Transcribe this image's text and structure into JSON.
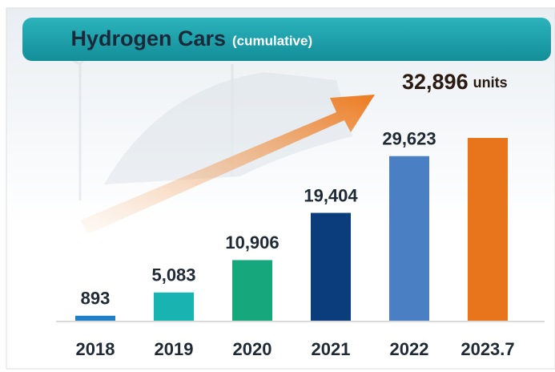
{
  "chart_data": {
    "type": "bar",
    "title": "Hydrogen Cars",
    "subtitle": "(cumulative)",
    "categories": [
      "2018",
      "2019",
      "2020",
      "2021",
      "2022",
      "2023.7"
    ],
    "values": [
      893,
      5083,
      10906,
      19404,
      29623,
      32896
    ],
    "value_labels": [
      "893",
      "5,083",
      "10,906",
      "19,404",
      "29,623",
      "32,896"
    ],
    "unit": "units",
    "colors": [
      "#1f80c8",
      "#19b3b1",
      "#17a77c",
      "#0b3c7c",
      "#4a7fc3",
      "#e8741b"
    ]
  }
}
